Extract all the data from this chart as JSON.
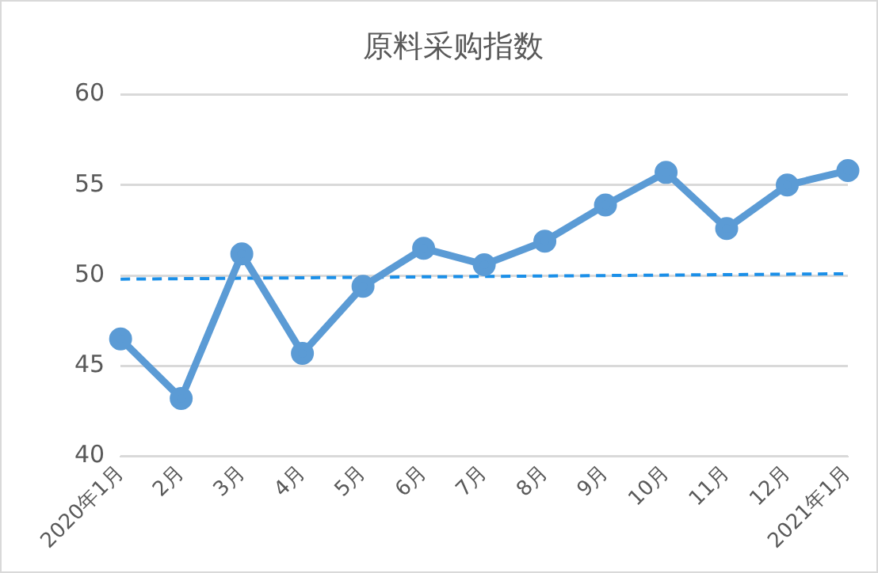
{
  "chart_data": {
    "type": "line",
    "title": "原料采购指数",
    "categories": [
      "2020年1月",
      "2月",
      "3月",
      "4月",
      "5月",
      "6月",
      "7月",
      "8月",
      "9月",
      "10月",
      "11月",
      "12月",
      "2021年1月"
    ],
    "series": [
      {
        "color": "#5b9bd5",
        "marker": "circle",
        "line_style": "solid",
        "values": [
          46.5,
          43.2,
          51.2,
          45.7,
          49.4,
          51.5,
          50.6,
          51.9,
          53.9,
          55.7,
          52.6,
          55.0,
          55.8
        ]
      },
      {
        "type": "line",
        "color": "#1a8fe8",
        "marker": "none",
        "line_style": "dashed",
        "values": [
          49.8,
          null,
          null,
          null,
          null,
          null,
          null,
          null,
          null,
          null,
          null,
          null,
          50.1
        ]
      }
    ],
    "ylim": [
      40,
      60
    ],
    "yticks": [
      40,
      45,
      50,
      55,
      60
    ],
    "grid": "y",
    "legend": false
  }
}
